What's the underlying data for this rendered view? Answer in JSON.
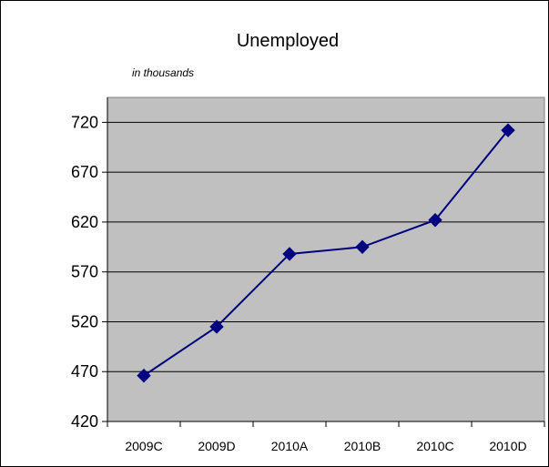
{
  "chart_data": {
    "type": "line",
    "title": "Unemployed",
    "subtitle": "in thousands",
    "xlabel": "",
    "ylabel": "",
    "categories": [
      "2009C",
      "2009D",
      "2010A",
      "2010B",
      "2010C",
      "2010D"
    ],
    "series": [
      {
        "values": [
          466,
          515,
          588,
          595,
          622,
          712
        ]
      }
    ],
    "ylim": [
      420,
      745
    ],
    "yticks": [
      420,
      470,
      520,
      570,
      620,
      670,
      720
    ],
    "grid": "horizontal",
    "legend": "none",
    "colors": {
      "plot_background": "#c0c0c0",
      "line": "#000080",
      "marker": "#000080",
      "gridline": "#000000"
    }
  }
}
